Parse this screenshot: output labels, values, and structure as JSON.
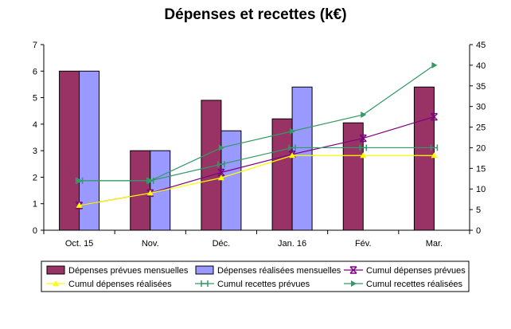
{
  "chart_data": {
    "type": "bar",
    "title": "Dépenses et recettes (k€)",
    "xlabel": "",
    "ylabel": "",
    "categories": [
      "Oct. 15",
      "Nov.",
      "Déc.",
      "Jan. 16",
      "Fév.",
      "Mar."
    ],
    "ylim": [
      0,
      7
    ],
    "y_ticks": [
      0,
      1,
      2,
      3,
      4,
      5,
      6,
      7
    ],
    "y2lim": [
      0,
      45
    ],
    "y2_ticks": [
      0,
      5,
      10,
      15,
      20,
      25,
      30,
      35,
      40,
      45
    ],
    "grid": false,
    "legend_position": "bottom",
    "series": [
      {
        "name": "Dépenses prévues mensuelles",
        "kind": "bar",
        "axis": "left",
        "color": "#993366",
        "values": [
          6.0,
          3.0,
          4.9,
          4.2,
          4.05,
          5.4
        ]
      },
      {
        "name": "Dépenses réalisées mensuelles",
        "kind": "bar",
        "axis": "left",
        "color": "#9999ff",
        "values": [
          6.0,
          3.0,
          3.75,
          5.4,
          null,
          null
        ]
      },
      {
        "name": "Cumul dépenses prévues",
        "kind": "line",
        "axis": "right",
        "color": "#800080",
        "marker": "star",
        "values": [
          6,
          9,
          14,
          18.4,
          22.3,
          27.5
        ]
      },
      {
        "name": "Cumul dépenses réalisées",
        "kind": "line",
        "axis": "right",
        "color": "#ffff00",
        "marker": "triangle",
        "values": [
          6,
          9,
          12.7,
          18.1,
          18.1,
          18.1
        ]
      },
      {
        "name": "Cumul recettes prévues",
        "kind": "line",
        "axis": "right",
        "color": "#339966",
        "marker": "bar-cross",
        "values": [
          12,
          12,
          16,
          20,
          20,
          20
        ]
      },
      {
        "name": "Cumul recettes réalisées",
        "kind": "line",
        "axis": "right",
        "color": "#339966",
        "marker": "triangle-right",
        "values": [
          12,
          12,
          20,
          24,
          28,
          40
        ]
      }
    ]
  }
}
